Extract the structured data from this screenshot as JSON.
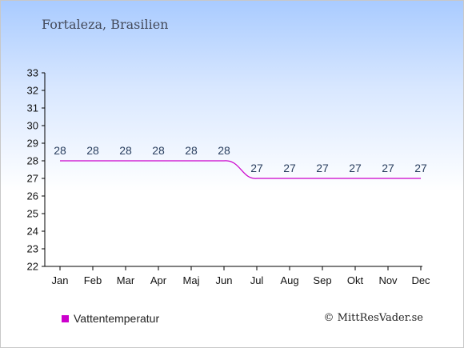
{
  "title": "Fortaleza, Brasilien",
  "copyright": "© MittResVader.se",
  "colors": {
    "series": "#cc00cc",
    "axis": "#000000",
    "label": "#2a3f5f"
  },
  "chart_data": {
    "type": "line",
    "categories": [
      "Jan",
      "Feb",
      "Mar",
      "Apr",
      "Maj",
      "Jun",
      "Jul",
      "Aug",
      "Sep",
      "Okt",
      "Nov",
      "Dec"
    ],
    "series": [
      {
        "name": "Vattentemperatur",
        "values": [
          28,
          28,
          28,
          28,
          28,
          28,
          27,
          27,
          27,
          27,
          27,
          27
        ]
      }
    ],
    "ylim": [
      22,
      33
    ],
    "yticks": [
      22,
      23,
      24,
      25,
      26,
      27,
      28,
      29,
      30,
      31,
      32,
      33
    ],
    "legend": "bottom-left",
    "grid": false
  }
}
